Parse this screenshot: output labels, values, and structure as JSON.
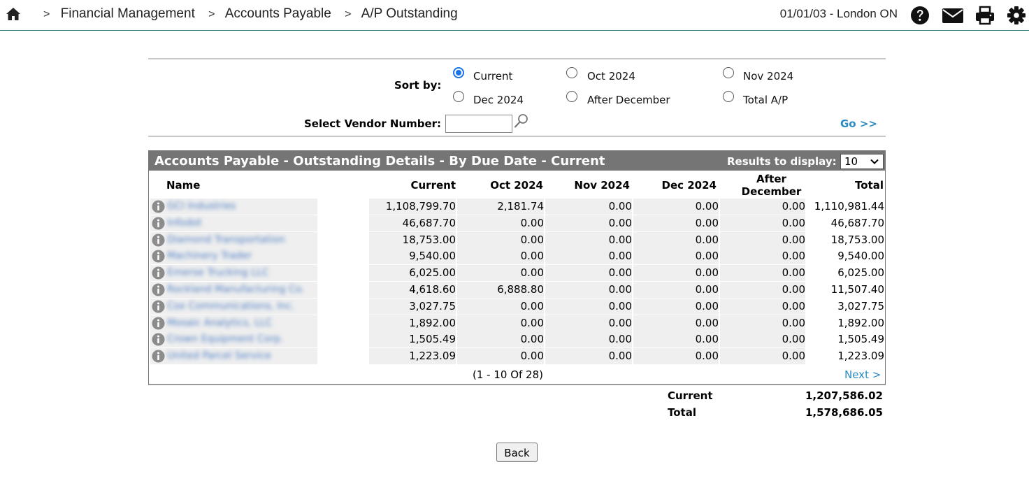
{
  "topbar": {
    "breadcrumbs": [
      "Financial Management",
      "Accounts Payable",
      "A/P Outstanding"
    ],
    "separator": ">",
    "locale": "01/01/03 - London ON",
    "icons": [
      "home-icon",
      "help-icon",
      "mail-icon",
      "print-icon",
      "settings-icon"
    ]
  },
  "filters": {
    "sort_label": "Sort by:",
    "sort_options": [
      "Current",
      "Oct 2024",
      "Nov 2024",
      "Dec 2024",
      "After December",
      "Total A/P"
    ],
    "sort_selected": "Current",
    "vendor_label": "Select Vendor Number:",
    "vendor_value": "",
    "go_label": "Go >>"
  },
  "table": {
    "title": "Accounts Payable - Outstanding Details - By Due Date  - Current",
    "results_label": "Results to display:",
    "results_value": "10",
    "columns": [
      "Name",
      "Current",
      "Oct 2024",
      "Nov 2024",
      "Dec 2024",
      "After December",
      "Total"
    ],
    "rows": [
      {
        "name": "GCI Industries",
        "current": "1,108,799.70",
        "oct": "2,181.74",
        "nov": "0.00",
        "dec": "0.00",
        "after": "0.00",
        "total": "1,110,981.44"
      },
      {
        "name": "Infodot",
        "current": "46,687.70",
        "oct": "0.00",
        "nov": "0.00",
        "dec": "0.00",
        "after": "0.00",
        "total": "46,687.70"
      },
      {
        "name": "Diamond Transportation",
        "current": "18,753.00",
        "oct": "0.00",
        "nov": "0.00",
        "dec": "0.00",
        "after": "0.00",
        "total": "18,753.00"
      },
      {
        "name": "Machinery Trader",
        "current": "9,540.00",
        "oct": "0.00",
        "nov": "0.00",
        "dec": "0.00",
        "after": "0.00",
        "total": "9,540.00"
      },
      {
        "name": "Emerse Trucking LLC",
        "current": "6,025.00",
        "oct": "0.00",
        "nov": "0.00",
        "dec": "0.00",
        "after": "0.00",
        "total": "6,025.00"
      },
      {
        "name": "Rockland Manufacturing Co.",
        "current": "4,618.60",
        "oct": "6,888.80",
        "nov": "0.00",
        "dec": "0.00",
        "after": "0.00",
        "total": "11,507.40"
      },
      {
        "name": "Cox Communications, Inc.",
        "current": "3,027.75",
        "oct": "0.00",
        "nov": "0.00",
        "dec": "0.00",
        "after": "0.00",
        "total": "3,027.75"
      },
      {
        "name": "Mosaic Analytics, LLC",
        "current": "1,892.00",
        "oct": "0.00",
        "nov": "0.00",
        "dec": "0.00",
        "after": "0.00",
        "total": "1,892.00"
      },
      {
        "name": "Crown Equipment Corp.",
        "current": "1,505.49",
        "oct": "0.00",
        "nov": "0.00",
        "dec": "0.00",
        "after": "0.00",
        "total": "1,505.49"
      },
      {
        "name": "United Parcel Service",
        "current": "1,223.09",
        "oct": "0.00",
        "nov": "0.00",
        "dec": "0.00",
        "after": "0.00",
        "total": "1,223.09"
      }
    ],
    "pager": "(1 - 10 Of 28)",
    "next_label": "Next >"
  },
  "totals": {
    "current_label": "Current",
    "current_value": "1,207,586.02",
    "total_label": "Total",
    "total_value": "1,578,686.05"
  },
  "back_label": "Back",
  "colors": {
    "accent": "#2a8bc4",
    "header_bg": "#757575",
    "row_shade": "#efefef",
    "radio": "#1a73e8"
  }
}
